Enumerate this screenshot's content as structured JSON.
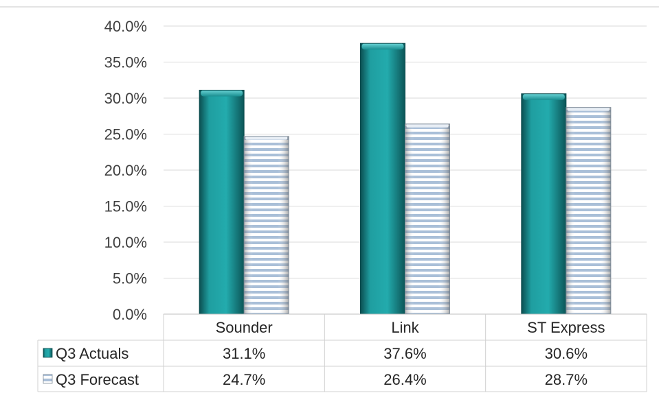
{
  "chart_data": {
    "type": "bar",
    "categories": [
      "Sounder",
      "Link",
      "ST Express"
    ],
    "series": [
      {
        "name": "Q3 Actuals",
        "values": [
          31.1,
          37.6,
          30.6
        ],
        "labels": [
          "31.1%",
          "37.6%",
          "30.6%"
        ],
        "color": "#20a3a5",
        "pattern": "solid"
      },
      {
        "name": "Q3 Forecast",
        "values": [
          24.7,
          26.4,
          28.7
        ],
        "labels": [
          "24.7%",
          "26.4%",
          "28.7%"
        ],
        "color": "#b9cbe0",
        "pattern": "horizontal-stripes"
      }
    ],
    "y_ticks": [
      "0.0%",
      "5.0%",
      "10.0%",
      "15.0%",
      "20.0%",
      "25.0%",
      "30.0%",
      "35.0%",
      "40.0%"
    ],
    "ylim": [
      0,
      40
    ],
    "grid": true,
    "legend": "data-table"
  }
}
